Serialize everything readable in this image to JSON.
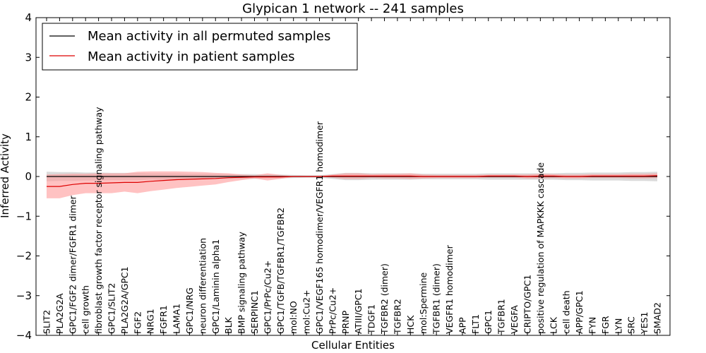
{
  "chart_data": {
    "type": "line",
    "title": "Glypican 1 network -- 241 samples",
    "xlabel": "Cellular Entities",
    "ylabel": "Inferred Activity",
    "ylim": [
      -4,
      4
    ],
    "yticks": [
      -4,
      -3,
      -2,
      -1,
      0,
      1,
      2,
      3,
      4
    ],
    "grid": false,
    "legend_position": "top-left",
    "categories": [
      "SLIT2",
      "PLA2G2A",
      "GPC1/FGF2 dimer/FGFR1 dimer",
      "cell growth",
      "fibroblast growth factor receptor signaling pathway",
      "GPC1/SLIT2",
      "PLA2G2A/GPC1",
      "FGF2",
      "NRG1",
      "FGFR1",
      "LAMA1",
      "GPC1/NRG",
      "neuron differentiation",
      "GPC1/Laminin alpha1",
      "BLK",
      "BMP signaling pathway",
      "SERPINC1",
      "GPC1/PrPc/Cu2+",
      "GPC1/TGFB/TGFBR1/TGFBR2",
      "mol:NO",
      "mol:Cu2+",
      "GPC1/VEGF165 homodimer/VEGFR1 homodimer",
      "PrPc/Cu2+",
      "PRNP",
      "ATIII/GPC1",
      "TDGF1",
      "TGFBR2 (dimer)",
      "TGFBR2",
      "HCK",
      "mol:Spermine",
      "TGFBR1 (dimer)",
      "VEGFR1 homodimer",
      "APP",
      "FLT1",
      "GPC1",
      "TGFBR1",
      "VEGFA",
      "CRIPTO/GPC1",
      "positive regulation of MAPKKK cascade",
      "LCK",
      "cell death",
      "APP/GPC1",
      "FYN",
      "FGR",
      "LYN",
      "SRC",
      "YES1",
      "SMAD2"
    ],
    "series": [
      {
        "name": "Mean activity in all permuted samples",
        "color": "#000000",
        "band_color": "#bbbbbb",
        "values": [
          0,
          0,
          0,
          0,
          0,
          0,
          0,
          0,
          0,
          0,
          0,
          0,
          0,
          0,
          0,
          0,
          0,
          0,
          0,
          0,
          0,
          0,
          0,
          0,
          0,
          0,
          0,
          0,
          0,
          0,
          0,
          0,
          0,
          0,
          0,
          0,
          0,
          0,
          0,
          0,
          0,
          0,
          0,
          0,
          0,
          0,
          0,
          0
        ],
        "band_upper": [
          0.12,
          0.11,
          0.11,
          0.1,
          0.1,
          0.09,
          0.09,
          0.09,
          0.08,
          0.08,
          0.08,
          0.07,
          0.07,
          0.07,
          0.06,
          0.06,
          0.06,
          0.05,
          0.05,
          0.04,
          0.03,
          0.03,
          0.06,
          0.09,
          0.09,
          0.08,
          0.08,
          0.08,
          0.08,
          0.07,
          0.07,
          0.07,
          0.07,
          0.07,
          0.08,
          0.08,
          0.08,
          0.08,
          0.08,
          0.08,
          0.09,
          0.09,
          0.1,
          0.1,
          0.1,
          0.11,
          0.11,
          0.12
        ],
        "band_lower": [
          -0.12,
          -0.11,
          -0.11,
          -0.1,
          -0.1,
          -0.09,
          -0.09,
          -0.09,
          -0.08,
          -0.08,
          -0.08,
          -0.07,
          -0.07,
          -0.07,
          -0.06,
          -0.06,
          -0.06,
          -0.05,
          -0.05,
          -0.04,
          -0.03,
          -0.03,
          -0.06,
          -0.09,
          -0.09,
          -0.08,
          -0.08,
          -0.08,
          -0.08,
          -0.07,
          -0.07,
          -0.07,
          -0.07,
          -0.07,
          -0.08,
          -0.08,
          -0.08,
          -0.08,
          -0.08,
          -0.08,
          -0.09,
          -0.09,
          -0.1,
          -0.1,
          -0.1,
          -0.11,
          -0.11,
          -0.12
        ]
      },
      {
        "name": "Mean activity in patient samples",
        "color": "#dd0000",
        "band_color": "#ff9999",
        "values": [
          -0.25,
          -0.25,
          -0.2,
          -0.17,
          -0.17,
          -0.16,
          -0.15,
          -0.15,
          -0.12,
          -0.1,
          -0.08,
          -0.07,
          -0.06,
          -0.05,
          -0.03,
          -0.02,
          -0.01,
          -0.01,
          -0.01,
          0,
          0,
          0,
          0.01,
          0.01,
          0.01,
          0.01,
          0.01,
          0.01,
          0.01,
          0,
          0,
          0,
          0,
          0,
          0.01,
          0.01,
          0.01,
          0,
          0.01,
          0.01,
          0,
          0,
          0.01,
          0.01,
          0.01,
          0.01,
          0.01,
          0.02
        ],
        "band_upper": [
          0.05,
          0.06,
          0.07,
          0.07,
          0.08,
          0.08,
          0.08,
          0.12,
          0.13,
          0.13,
          0.13,
          0.12,
          0.11,
          0.09,
          0.08,
          0.05,
          0.03,
          0.08,
          0.04,
          0.01,
          0.01,
          0.01,
          0.05,
          0.08,
          0.08,
          0.06,
          0.07,
          0.07,
          0.08,
          0.05,
          0.04,
          0.04,
          0.04,
          0.04,
          0.05,
          0.05,
          0.05,
          0.05,
          0.07,
          0.06,
          0.05,
          0.05,
          0.06,
          0.06,
          0.06,
          0.07,
          0.07,
          0.08
        ],
        "band_lower": [
          -0.55,
          -0.55,
          -0.47,
          -0.42,
          -0.42,
          -0.42,
          -0.38,
          -0.42,
          -0.37,
          -0.33,
          -0.29,
          -0.26,
          -0.23,
          -0.2,
          -0.14,
          -0.09,
          -0.05,
          -0.1,
          -0.06,
          -0.01,
          -0.01,
          -0.01,
          -0.03,
          -0.06,
          -0.06,
          -0.04,
          -0.05,
          -0.05,
          -0.06,
          -0.05,
          -0.04,
          -0.04,
          -0.04,
          -0.04,
          -0.03,
          -0.03,
          -0.03,
          -0.05,
          -0.05,
          -0.04,
          -0.05,
          -0.05,
          -0.04,
          -0.04,
          -0.04,
          -0.05,
          -0.05,
          -0.04
        ]
      }
    ]
  }
}
